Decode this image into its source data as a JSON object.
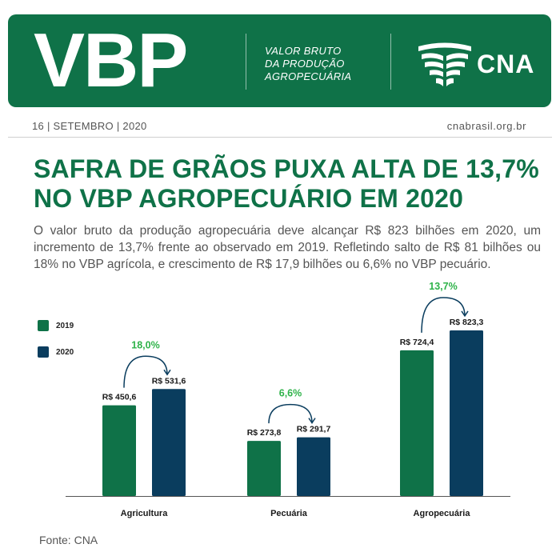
{
  "header": {
    "acronym": "VBP",
    "subtitle_lines": [
      "VALOR BRUTO",
      "DA PRODUÇÃO",
      "AGROPECUÁRIA"
    ],
    "brand": "CNA",
    "logo_icon": "cna-wheat-logo-icon"
  },
  "dateline": {
    "date": "16 | SETEMBRO | 2020",
    "site": "cnabrasil.org.br"
  },
  "headline": {
    "lines": [
      "SAFRA DE GRÃOS PUXA ALTA DE 13,7%",
      "NO VBP AGROPECUÁRIO EM 2020"
    ]
  },
  "description": "O valor bruto da produção agropecuária deve alcançar R$ 823 bilhões em 2020, um incremento de 13,7% frente ao observado em 2019. Refletindo salto de R$ 81 bilhões ou 18% no VBP agrícola, e crescimento de R$ 17,9 bilhões ou 6,6% no VBP pecuário.",
  "source": "Fonte: CNA",
  "colors": {
    "brand_green": "#0f7248",
    "series_2019": "#0f7248",
    "series_2020": "#0a3d5e",
    "growth_green": "#2fb34a"
  },
  "chart_data": {
    "type": "bar",
    "categories": [
      "Agricultura",
      "Pecuária",
      "Agropecuária"
    ],
    "series": [
      {
        "name": "2019",
        "values": [
          450.6,
          273.8,
          724.4
        ],
        "labels": [
          "R$ 450,6",
          "R$ 273,8",
          "R$ 724,4"
        ]
      },
      {
        "name": "2020",
        "values": [
          531.6,
          291.7,
          823.3
        ],
        "labels": [
          "R$ 531,6",
          "R$ 291,7",
          "R$ 823,3"
        ]
      }
    ],
    "growth_labels": [
      "18,0%",
      "6,6%",
      "13,7%"
    ],
    "legend": "top-left",
    "grid": false,
    "ylim": [
      0,
      900
    ]
  }
}
